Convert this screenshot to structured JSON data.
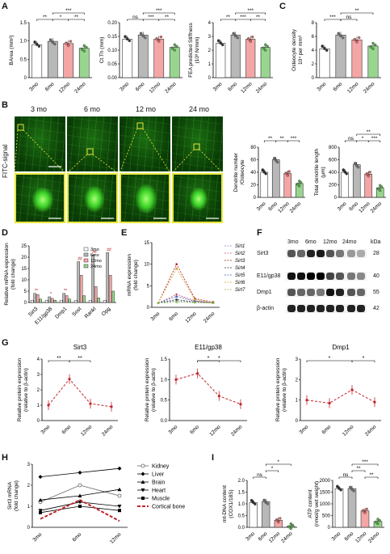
{
  "panel_labels": {
    "A": "A",
    "B": "B",
    "C": "C",
    "D": "D",
    "E": "E",
    "F": "F",
    "G": "G",
    "H": "H",
    "I": "I"
  },
  "colors": {
    "c3mo": "#ffffff",
    "c6mo": "#b8b8b8",
    "c12mo": "#f4a6a6",
    "c24mo": "#98d68f",
    "red": "#c1272d"
  },
  "panel_A": {
    "charts": [
      {
        "ylabel": "BArea (mm²)",
        "yticks": [
          "0",
          "0.5",
          "1.0",
          "1.5"
        ],
        "ylim": [
          0,
          1.5
        ],
        "categories": [
          "3mo",
          "6mo",
          "12mo",
          "24mo"
        ],
        "values": [
          0.9,
          0.99,
          0.93,
          0.8
        ],
        "sig": [
          {
            "t": "**",
            "a": 0,
            "b": 1,
            "lvl": 0
          },
          {
            "t": "*",
            "a": 1,
            "b": 2,
            "lvl": 0
          },
          {
            "t": "**",
            "a": 2,
            "b": 3,
            "lvl": 0
          },
          {
            "t": "***",
            "a": 1,
            "b": 3,
            "lvl": 1
          }
        ]
      },
      {
        "ylabel": "Ct.Th (mm)",
        "yticks": [
          "0.00",
          "0.05",
          "0.10",
          "0.15",
          "0.20"
        ],
        "ylim": [
          0,
          0.2
        ],
        "categories": [
          "3mo",
          "6mo",
          "12mo",
          "24mo"
        ],
        "values": [
          0.14,
          0.155,
          0.14,
          0.11
        ],
        "sig": [
          {
            "t": "ns",
            "a": 0,
            "b": 1,
            "lvl": 0
          },
          {
            "t": "***",
            "a": 1,
            "b": 2,
            "lvl": 0
          },
          {
            "t": "**",
            "a": 2,
            "b": 3,
            "lvl": 0
          },
          {
            "t": "***",
            "a": 1,
            "b": 3,
            "lvl": 1
          }
        ]
      },
      {
        "ylabel": "FEA predicted Stiffness",
        "ylabel2": "(10³ N/mm)",
        "yticks": [
          "0",
          "1",
          "2",
          "3",
          "4"
        ],
        "ylim": [
          0,
          4
        ],
        "categories": [
          "3mo",
          "6mo",
          "12mo",
          "24mo"
        ],
        "values": [
          2.5,
          3.1,
          2.8,
          2.2
        ],
        "sig": [
          {
            "t": "**",
            "a": 0,
            "b": 1,
            "lvl": 0
          },
          {
            "t": "***",
            "a": 1,
            "b": 2,
            "lvl": 0
          },
          {
            "t": "**",
            "a": 2,
            "b": 3,
            "lvl": 0
          },
          {
            "t": "***",
            "a": 1,
            "b": 3,
            "lvl": 1
          }
        ]
      }
    ]
  },
  "panel_C": {
    "ylabel": "Osteocyte density",
    "ylabel2": "10⁴ per mm³",
    "yticks": [
      "0",
      "2",
      "4",
      "6",
      "8"
    ],
    "ylim": [
      0,
      8
    ],
    "categories": [
      "3mo",
      "6mo",
      "12mo",
      "24mo"
    ],
    "values": [
      4.2,
      6.2,
      5.5,
      4.6
    ],
    "sig": [
      {
        "t": "***",
        "a": 0,
        "b": 1,
        "lvl": 0
      },
      {
        "t": "ns",
        "a": 1,
        "b": 2,
        "lvl": 0
      },
      {
        "t": "**",
        "a": 1,
        "b": 3,
        "lvl": 1
      }
    ]
  },
  "panel_B": {
    "timepoints": [
      "3 mo",
      "6 mo",
      "12 mo",
      "24 mo"
    ],
    "side_label": "FITC-signal",
    "charts": [
      {
        "ylabel": "Dendrite number",
        "ylabel2": "/Osteocyte",
        "yticks": [
          "0",
          "20",
          "40",
          "60",
          "80"
        ],
        "ylim": [
          0,
          80
        ],
        "categories": [
          "3mo",
          "6mo",
          "12mo",
          "24mo"
        ],
        "values": [
          40,
          60,
          38,
          22
        ],
        "sig": [
          {
            "t": "**",
            "a": 0,
            "b": 1,
            "lvl": 0
          },
          {
            "t": "**",
            "a": 1,
            "b": 2,
            "lvl": 0
          },
          {
            "t": "***",
            "a": 2,
            "b": 3,
            "lvl": 0
          }
        ]
      },
      {
        "ylabel": "Total dendrite length",
        "ylabel2": "(μm)",
        "yticks": [
          "0",
          "200",
          "400",
          "600",
          "800"
        ],
        "ylim": [
          0,
          800
        ],
        "categories": [
          "3mo",
          "6mo",
          "12mo",
          "24mo"
        ],
        "values": [
          400,
          520,
          370,
          150
        ],
        "sig": [
          {
            "t": "ns",
            "a": 0,
            "b": 1,
            "lvl": 0
          },
          {
            "t": "*",
            "a": 1,
            "b": 2,
            "lvl": 0
          },
          {
            "t": "***",
            "a": 2,
            "b": 3,
            "lvl": 0
          },
          {
            "t": "**",
            "a": 1,
            "b": 3,
            "lvl": 1
          }
        ]
      }
    ]
  },
  "panel_D": {
    "ylabel": "Relative mRNA expression",
    "ylabel2": "(fold change)",
    "yticks": [
      "0",
      "5",
      "10",
      "15",
      "20",
      "25"
    ],
    "ylim": [
      0,
      25
    ],
    "categories": [
      "Sirt3",
      "E11/gp38",
      "Dmp1",
      "Sost",
      "Rankl",
      "Opg"
    ],
    "legend": [
      "3mo",
      "6mo",
      "12mo",
      "24mo"
    ],
    "series": [
      [
        1,
        1,
        1,
        1,
        1,
        1
      ],
      [
        4,
        2.5,
        4,
        18,
        21,
        22
      ],
      [
        3.5,
        1.8,
        3,
        12,
        7,
        12
      ],
      [
        1.5,
        1,
        1.5,
        3,
        2,
        5
      ]
    ],
    "marks": [
      "**",
      "*",
      "**",
      "##",
      "##",
      "##"
    ]
  },
  "chart_data": {
    "type": "line",
    "x": [
      "3mo",
      "6mo",
      "12mo",
      "24mo"
    ],
    "ylabel": "mRNA expression",
    "ylabel2": "(fold change)",
    "yticks": [
      "0",
      "5",
      "10",
      "15"
    ],
    "ylim": [
      0,
      15
    ],
    "series": [
      {
        "name": "Sirt1",
        "values": [
          1,
          1.5,
          1.2,
          1
        ]
      },
      {
        "name": "Sirt2",
        "values": [
          1,
          3,
          1.5,
          1
        ]
      },
      {
        "name": "Sirt3",
        "values": [
          1,
          10,
          2,
          1.2
        ]
      },
      {
        "name": "Sirt4",
        "values": [
          1,
          1.8,
          1.2,
          1
        ]
      },
      {
        "name": "Sirt5",
        "values": [
          1,
          2.5,
          1.4,
          1.1
        ]
      },
      {
        "name": "Sirt6",
        "values": [
          1,
          9,
          1.8,
          1
        ]
      },
      {
        "name": "Sirt7",
        "values": [
          1,
          1.2,
          1.1,
          1
        ]
      }
    ],
    "series_colors": [
      "#7f8fb8",
      "#c2557a",
      "#a61b1b",
      "#333333",
      "#3d63b5",
      "#d2a22b",
      "#8bbf4a"
    ]
  },
  "panel_F": {
    "lanes": [
      "3mo",
      "6mo",
      "12mo",
      "24mo"
    ],
    "kda": "kDa",
    "rows": [
      {
        "label": "Sirt3",
        "kda": "28"
      },
      {
        "label": "E11/gp38",
        "kda": "40"
      },
      {
        "label": "Dmp1",
        "kda": "55"
      },
      {
        "label": "β-actin",
        "kda": "42"
      }
    ]
  },
  "panel_G": {
    "ylabel": "Relative protein expression",
    "ylabel2": "(relative to β-actin)",
    "categories": [
      "3mo",
      "6mo",
      "12mo",
      "24mo"
    ],
    "charts": [
      {
        "title": "Sirt3",
        "yticks": [
          "0",
          "1",
          "2",
          "3",
          "4"
        ],
        "ylim": [
          0,
          4
        ],
        "values": [
          1,
          2.7,
          1.1,
          0.9
        ],
        "sig": [
          {
            "t": "**",
            "a": 0,
            "b": 1
          },
          {
            "t": "**",
            "a": 1,
            "b": 2
          }
        ]
      },
      {
        "title": "E11/gp38",
        "yticks": [
          "0.0",
          "0.5",
          "1.0",
          "1.5"
        ],
        "ylim": [
          0,
          1.5
        ],
        "values": [
          1,
          1.15,
          0.6,
          0.4
        ],
        "sig": [
          {
            "t": "*",
            "a": 1,
            "b": 2
          },
          {
            "t": "*",
            "a": 1,
            "b": 3
          }
        ]
      },
      {
        "title": "Dmp1",
        "yticks": [
          "0",
          "1",
          "2",
          "3"
        ],
        "ylim": [
          0,
          3
        ],
        "values": [
          1,
          0.85,
          1.5,
          0.9
        ],
        "sig": [
          {
            "t": "*",
            "a": 0,
            "b": 2
          },
          {
            "t": "*",
            "a": 2,
            "b": 3
          }
        ]
      }
    ]
  },
  "panel_H": {
    "ylabel": "Sirt3 mRNA",
    "ylabel2": "(fold change)",
    "categories": [
      "3mo",
      "6mo",
      "12mo"
    ],
    "yticks": [
      "0",
      "1",
      "2",
      "3"
    ],
    "ylim": [
      0,
      3
    ],
    "series": [
      {
        "name": "Kidney",
        "values": [
          1.2,
          2.0,
          1.5
        ]
      },
      {
        "name": "Liver",
        "values": [
          2.4,
          2.6,
          2.8
        ]
      },
      {
        "name": "Brain",
        "values": [
          1.3,
          1.5,
          1.8
        ]
      },
      {
        "name": "Heart",
        "values": [
          0.8,
          1.2,
          1.0
        ]
      },
      {
        "name": "Muscle",
        "values": [
          0.7,
          1.0,
          0.8
        ]
      },
      {
        "name": "Cortical bone",
        "values": [
          0.4,
          1.3,
          0.3
        ]
      }
    ]
  },
  "panel_I": {
    "charts": [
      {
        "ylabel": "mt-DNA content",
        "ylabel2": "(COX1/18S)",
        "yticks": [
          "0.0",
          "0.5",
          "1.0",
          "1.5",
          "2.0"
        ],
        "ylim": [
          0,
          2
        ],
        "categories": [
          "3mo",
          "6mo",
          "12mo",
          "24mo"
        ],
        "values": [
          1.05,
          1.1,
          0.3,
          0.05
        ],
        "sig": [
          {
            "t": "ns",
            "a": 0,
            "b": 1,
            "lvl": 0
          },
          {
            "t": "*",
            "a": 1,
            "b": 2,
            "lvl": 1
          },
          {
            "t": "*",
            "a": 1,
            "b": 3,
            "lvl": 2
          }
        ]
      },
      {
        "ylabel": "ATP content",
        "ylabel2": "(nmol/g wet weight)",
        "yticks": [
          "0",
          "500",
          "1000",
          "1500",
          "2000"
        ],
        "ylim": [
          0,
          2000
        ],
        "categories": [
          "3mo",
          "6mo",
          "12mo",
          "24mo"
        ],
        "values": [
          1650,
          1650,
          700,
          250
        ],
        "sig": [
          {
            "t": "ns",
            "a": 0,
            "b": 1,
            "lvl": 0
          },
          {
            "t": "**",
            "a": 2,
            "b": 3,
            "lvl": 0
          },
          {
            "t": "**",
            "a": 1,
            "b": 2,
            "lvl": 1
          },
          {
            "t": "***",
            "a": 1,
            "b": 3,
            "lvl": 2
          }
        ]
      }
    ]
  }
}
